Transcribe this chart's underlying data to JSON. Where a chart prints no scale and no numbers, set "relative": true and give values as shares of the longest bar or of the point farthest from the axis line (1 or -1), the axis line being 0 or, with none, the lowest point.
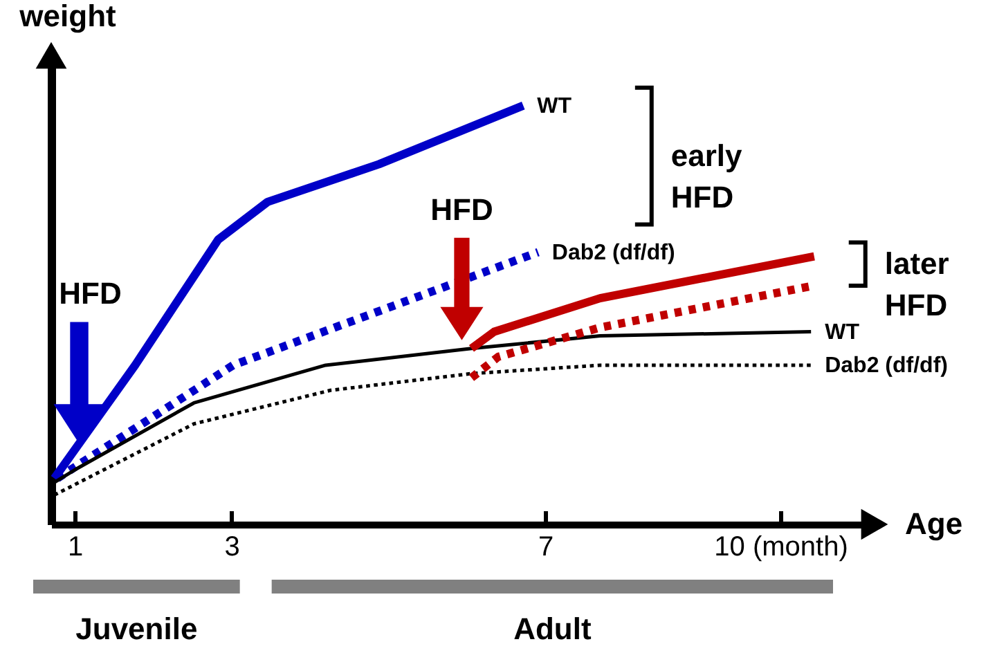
{
  "chart_data": {
    "type": "line",
    "relative": true,
    "ylabel": "weight",
    "xlabel": "Age",
    "xlim": [
      0.7,
      11.2
    ],
    "xticks": [
      1,
      3,
      7,
      {
        "value": 10,
        "label": "10 (month)"
      }
    ],
    "grid": false,
    "marker": "none",
    "series": [
      {
        "name": "WT",
        "color": "#0000c8",
        "line_style": "solid",
        "x": [
          0.74,
          1.77,
          2.83,
          3.46,
          4.88,
          6.72
        ],
        "values": [
          0.11,
          0.38,
          0.68,
          0.77,
          0.86,
          1.0
        ]
      },
      {
        "name": "Dab2 (df/df)",
        "color": "#0000c8",
        "line_style": "dotted",
        "x": [
          0.78,
          3.02,
          6.91
        ],
        "values": [
          0.11,
          0.38,
          0.65
        ]
      },
      {
        "name": "WT",
        "color": "#000000",
        "line_style": "solid",
        "x": [
          0.74,
          1.0,
          2.52,
          4.2,
          6.06,
          7.7,
          10.39
        ],
        "values": [
          0.1,
          0.13,
          0.29,
          0.38,
          0.42,
          0.45,
          0.46
        ]
      },
      {
        "name": "Dab2 (df/df)",
        "color": "#000000",
        "line_style": "dotted",
        "x": [
          0.74,
          2.52,
          4.26,
          6.06,
          7.7,
          10.39
        ],
        "values": [
          0.07,
          0.24,
          0.32,
          0.36,
          0.38,
          0.38
        ]
      },
      {
        "color": "#c00000",
        "line_style": "solid",
        "x": [
          6.06,
          6.35,
          7.7,
          10.43
        ],
        "values": [
          0.42,
          0.46,
          0.54,
          0.64
        ]
      },
      {
        "color": "#c00000",
        "line_style": "dotted",
        "x": [
          6.06,
          6.4,
          7.7,
          10.43
        ],
        "values": [
          0.35,
          0.4,
          0.47,
          0.57
        ]
      }
    ],
    "annotations": [
      "HFD",
      "HFD",
      "early HFD",
      "later HFD",
      "Juvenile",
      "Adult"
    ]
  }
}
